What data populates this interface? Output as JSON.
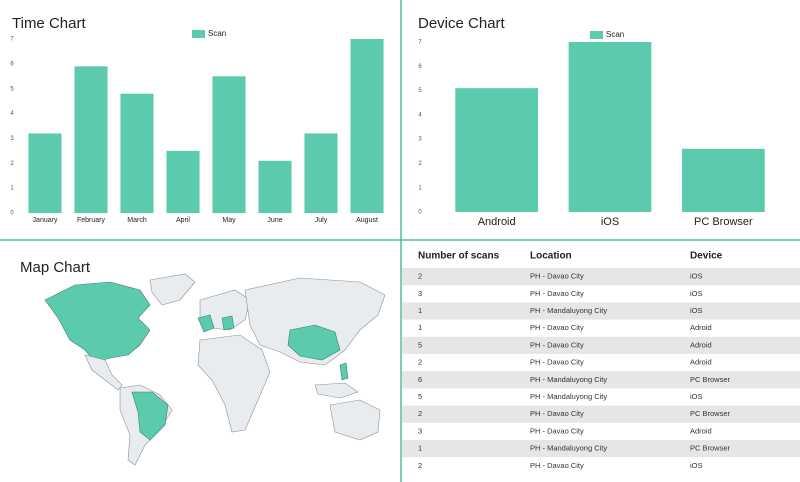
{
  "chart_data": [
    {
      "type": "bar",
      "title": "Time Chart",
      "categories": [
        "January",
        "February",
        "March",
        "April",
        "May",
        "June",
        "July",
        "August"
      ],
      "series": [
        {
          "name": "Scan",
          "color": "#5ccbad",
          "values": [
            3.2,
            5.9,
            4.8,
            2.5,
            5.5,
            2.1,
            3.2,
            7
          ]
        }
      ],
      "ylim": [
        0,
        7
      ],
      "yticks": [
        0,
        1,
        2,
        3,
        4,
        5,
        6,
        7
      ],
      "grid": false,
      "legend": "top"
    },
    {
      "type": "bar",
      "title": "Device Chart",
      "categories": [
        "Android",
        "iOS",
        "PC Browser"
      ],
      "series": [
        {
          "name": "Scan",
          "color": "#5ccbad",
          "values": [
            5.1,
            7,
            2.6
          ]
        }
      ],
      "ylim": [
        0,
        7
      ],
      "yticks": [
        0,
        1,
        2,
        3,
        4,
        5,
        6,
        7
      ],
      "grid": false,
      "legend": "top"
    }
  ],
  "map": {
    "title": "Map Chart"
  },
  "table": {
    "columns": [
      "Number of scans",
      "Location",
      "Device"
    ],
    "rows": [
      [
        "2",
        "PH - Davao City",
        "iOS"
      ],
      [
        "3",
        "PH - Davao City",
        "iOS"
      ],
      [
        "1",
        "PH - Mandaluyong City",
        "iOS"
      ],
      [
        "1",
        "PH - Davao City",
        "Adroid"
      ],
      [
        "5",
        "PH - Davao City",
        "Adroid"
      ],
      [
        "2",
        "PH - Davao City",
        "Adroid"
      ],
      [
        "6",
        "PH - Mandaluyong City",
        "PC Browser"
      ],
      [
        "5",
        "PH - Mandaluyong City",
        "iOS"
      ],
      [
        "2",
        "PH - Davao City",
        "PC Browser"
      ],
      [
        "3",
        "PH - Davao City",
        "Adroid"
      ],
      [
        "1",
        "PH - Mandaluyong City",
        "PC Browser"
      ],
      [
        "2",
        "PH - Davao City",
        "iOS"
      ]
    ]
  }
}
